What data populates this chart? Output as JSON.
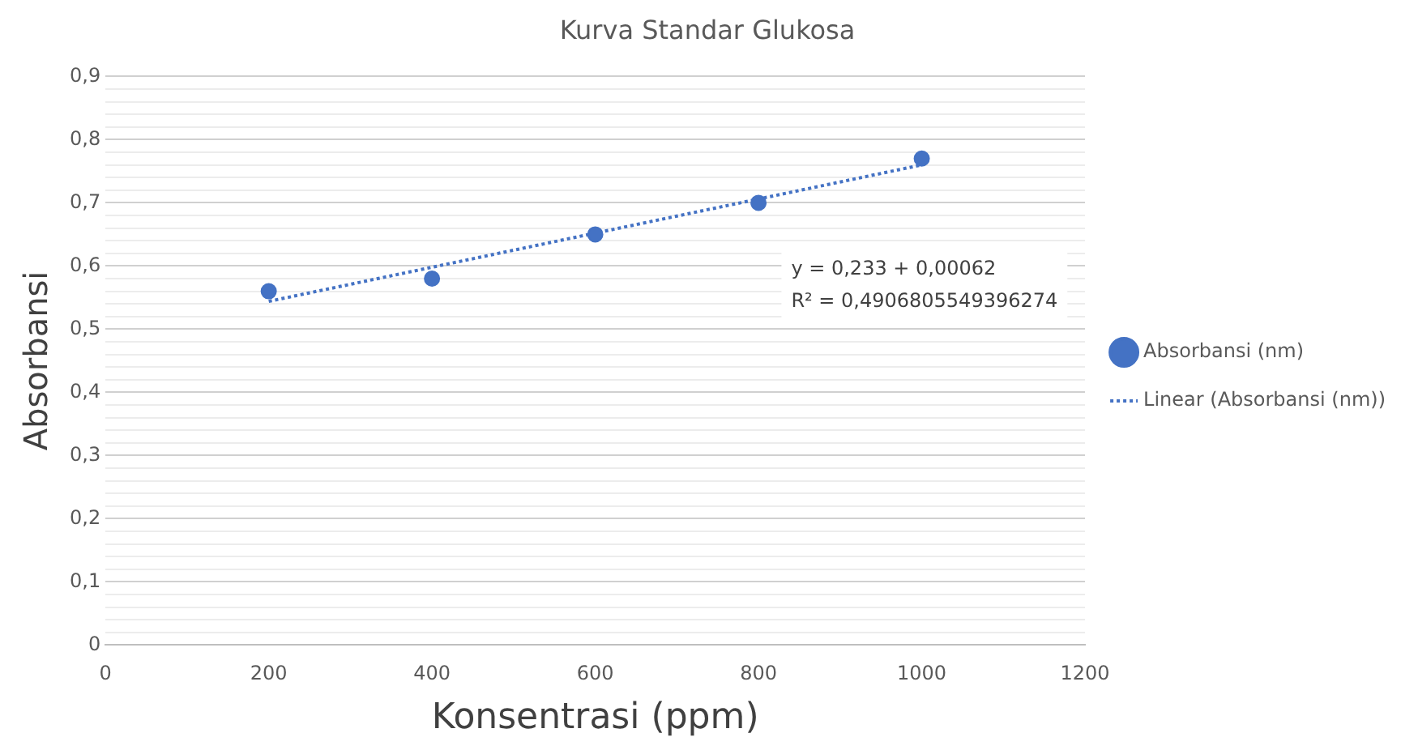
{
  "chart_data": {
    "type": "scatter",
    "title": "Kurva Standar Glukosa",
    "xlabel": "Konsentrasi (ppm)",
    "ylabel": "Absorbansi",
    "x": [
      200,
      400,
      600,
      800,
      1000
    ],
    "series": [
      {
        "name": "Absorbansi (nm)",
        "type": "scatter",
        "color": "#4472c4",
        "values": [
          0.56,
          0.58,
          0.65,
          0.7,
          0.77
        ],
        "marker": "circle"
      },
      {
        "name": "Linear (Absorbansi (nm))",
        "type": "line",
        "color": "#4472c4",
        "x": [
          200,
          1000
        ],
        "values": [
          0.544,
          0.76
        ],
        "line_style": "dotted",
        "marker": "none"
      }
    ],
    "annotations": [
      "y = 0,233 + 0,00062",
      "R² = 0,4906805549396274"
    ],
    "xlim": [
      0,
      1200
    ],
    "xticks": [
      0,
      200,
      400,
      600,
      800,
      1000,
      1200
    ],
    "ylim": [
      0,
      0.9
    ],
    "yticks": [
      {
        "value": 0,
        "label": "0"
      },
      {
        "value": 0.02,
        "label": null
      },
      {
        "value": 0.04,
        "label": null
      },
      {
        "value": 0.06,
        "label": null
      },
      {
        "value": 0.08,
        "label": null
      },
      {
        "value": 0.1,
        "label": "0,1"
      },
      {
        "value": 0.12,
        "label": null
      },
      {
        "value": 0.14,
        "label": null
      },
      {
        "value": 0.16,
        "label": null
      },
      {
        "value": 0.18,
        "label": null
      },
      {
        "value": 0.2,
        "label": "0,2"
      },
      {
        "value": 0.22,
        "label": null
      },
      {
        "value": 0.24,
        "label": null
      },
      {
        "value": 0.26,
        "label": null
      },
      {
        "value": 0.28,
        "label": null
      },
      {
        "value": 0.3,
        "label": "0,3"
      },
      {
        "value": 0.32,
        "label": null
      },
      {
        "value": 0.34,
        "label": null
      },
      {
        "value": 0.36,
        "label": null
      },
      {
        "value": 0.38,
        "label": null
      },
      {
        "value": 0.4,
        "label": "0,4"
      },
      {
        "value": 0.42,
        "label": null
      },
      {
        "value": 0.44,
        "label": null
      },
      {
        "value": 0.46,
        "label": null
      },
      {
        "value": 0.48,
        "label": null
      },
      {
        "value": 0.5,
        "label": "0,5"
      },
      {
        "value": 0.52,
        "label": null
      },
      {
        "value": 0.54,
        "label": null
      },
      {
        "value": 0.56,
        "label": null
      },
      {
        "value": 0.58,
        "label": null
      },
      {
        "value": 0.6,
        "label": "0,6"
      },
      {
        "value": 0.62,
        "label": null
      },
      {
        "value": 0.64,
        "label": null
      },
      {
        "value": 0.66,
        "label": null
      },
      {
        "value": 0.68,
        "label": null
      },
      {
        "value": 0.7,
        "label": "0,7"
      },
      {
        "value": 0.72,
        "label": null
      },
      {
        "value": 0.74,
        "label": null
      },
      {
        "value": 0.76,
        "label": null
      },
      {
        "value": 0.78,
        "label": null
      },
      {
        "value": 0.8,
        "label": "0,8"
      },
      {
        "value": 0.82,
        "label": null
      },
      {
        "value": 0.84,
        "label": null
      },
      {
        "value": 0.86,
        "label": null
      },
      {
        "value": 0.88,
        "label": null
      },
      {
        "value": 0.9,
        "label": "0,9"
      }
    ],
    "grid": "y",
    "legend": "right"
  }
}
